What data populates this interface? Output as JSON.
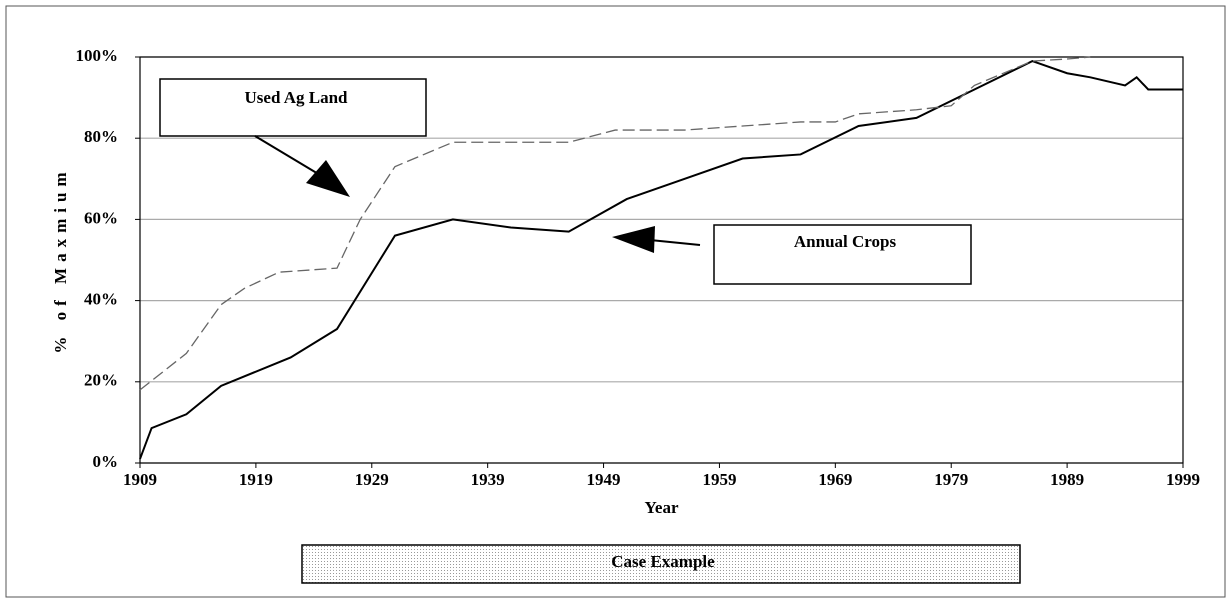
{
  "chart_data": {
    "type": "line",
    "xlabel": "Year",
    "ylabel": "% of Maxmium",
    "xlim": [
      1909,
      1999
    ],
    "xticks": [
      1909,
      1919,
      1929,
      1939,
      1949,
      1959,
      1969,
      1979,
      1989,
      1999
    ],
    "ylim": [
      0,
      100
    ],
    "yticks": [
      {
        "value": 0,
        "label": "0%"
      },
      {
        "value": 20,
        "label": "20%"
      },
      {
        "value": 40,
        "label": "40%"
      },
      {
        "value": 60,
        "label": "60%"
      },
      {
        "value": 80,
        "label": "80%"
      },
      {
        "value": 100,
        "label": "100%"
      }
    ],
    "grid": true,
    "series": [
      {
        "name": "Annual Crops",
        "color": "#000000",
        "dash": "solid",
        "x": [
          1909,
          1910,
          1913,
          1916,
          1922,
          1926,
          1931,
          1936,
          1941,
          1946,
          1951,
          1956,
          1961,
          1966,
          1971,
          1976,
          1981,
          1986,
          1989,
          1991,
          1994,
          1995,
          1996,
          1999
        ],
        "values": [
          1,
          8.6,
          12,
          19,
          26,
          33,
          56,
          60,
          58,
          57,
          65,
          70,
          75,
          76,
          83,
          85,
          92,
          99,
          96,
          95,
          93,
          95,
          92,
          92
        ]
      },
      {
        "name": "Used Ag Land",
        "color": "#666666",
        "dash": "dashed",
        "x": [
          1909,
          1913,
          1916,
          1918,
          1921,
          1926,
          1928,
          1931,
          1936,
          1941,
          1946,
          1950,
          1956,
          1961,
          1966,
          1969,
          1971,
          1976,
          1979,
          1981,
          1986,
          1989,
          1991
        ],
        "values": [
          18,
          27,
          39,
          43,
          47,
          48,
          60,
          73,
          79,
          79,
          79,
          82,
          82,
          83,
          84,
          84,
          86,
          87,
          88,
          93,
          99,
          99.5,
          100
        ]
      }
    ],
    "caption": "Case Example"
  }
}
